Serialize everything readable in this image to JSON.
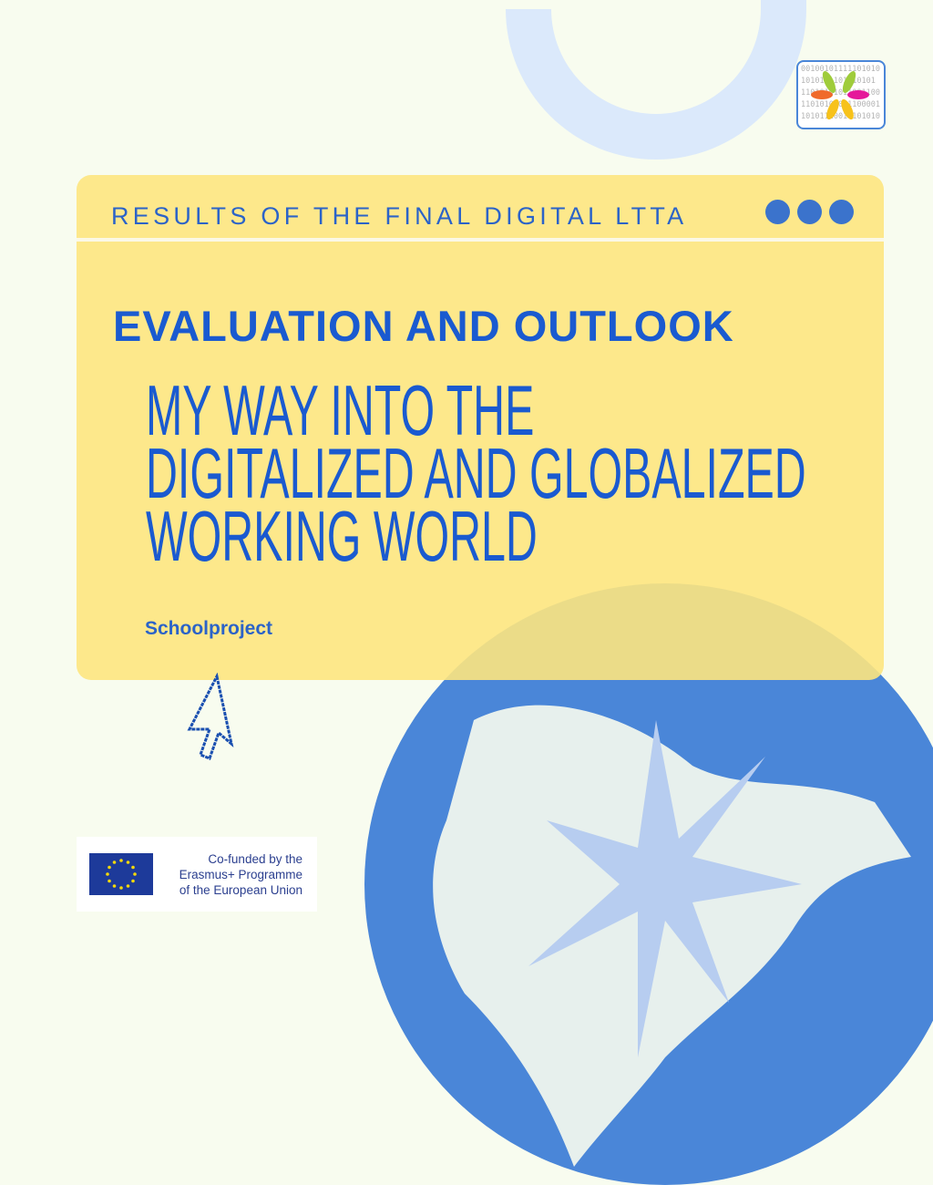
{
  "header": {
    "label": "RESULTS OF THE FINAL DIGITAL LTTA"
  },
  "main": {
    "heading": "EVALUATION AND OUTLOOK",
    "title_lines": [
      "MY WAY INTO THE",
      "DIGITALIZED AND GLOBALIZED",
      "WORKING WORLD"
    ],
    "subtitle": "Schoolproject"
  },
  "logo": {
    "binary_lines": [
      "00100101111101010",
      "1010101101010101",
      "11010101011001100",
      "11010101011100001",
      "10101110010101010"
    ]
  },
  "footer": {
    "eu_lines": [
      "Co-funded by the",
      "Erasmus+ Programme",
      "of the European Union"
    ]
  },
  "colors": {
    "background": "#f8fcef",
    "card": "#fde680",
    "accent": "#1a5ad0",
    "globe": "#4a86d8",
    "arc": "#dbe9fb"
  },
  "icons": [
    "window-dots-icon",
    "cursor-arrow-icon",
    "globe-illustration",
    "compass-star-icon",
    "eu-flag-icon"
  ]
}
